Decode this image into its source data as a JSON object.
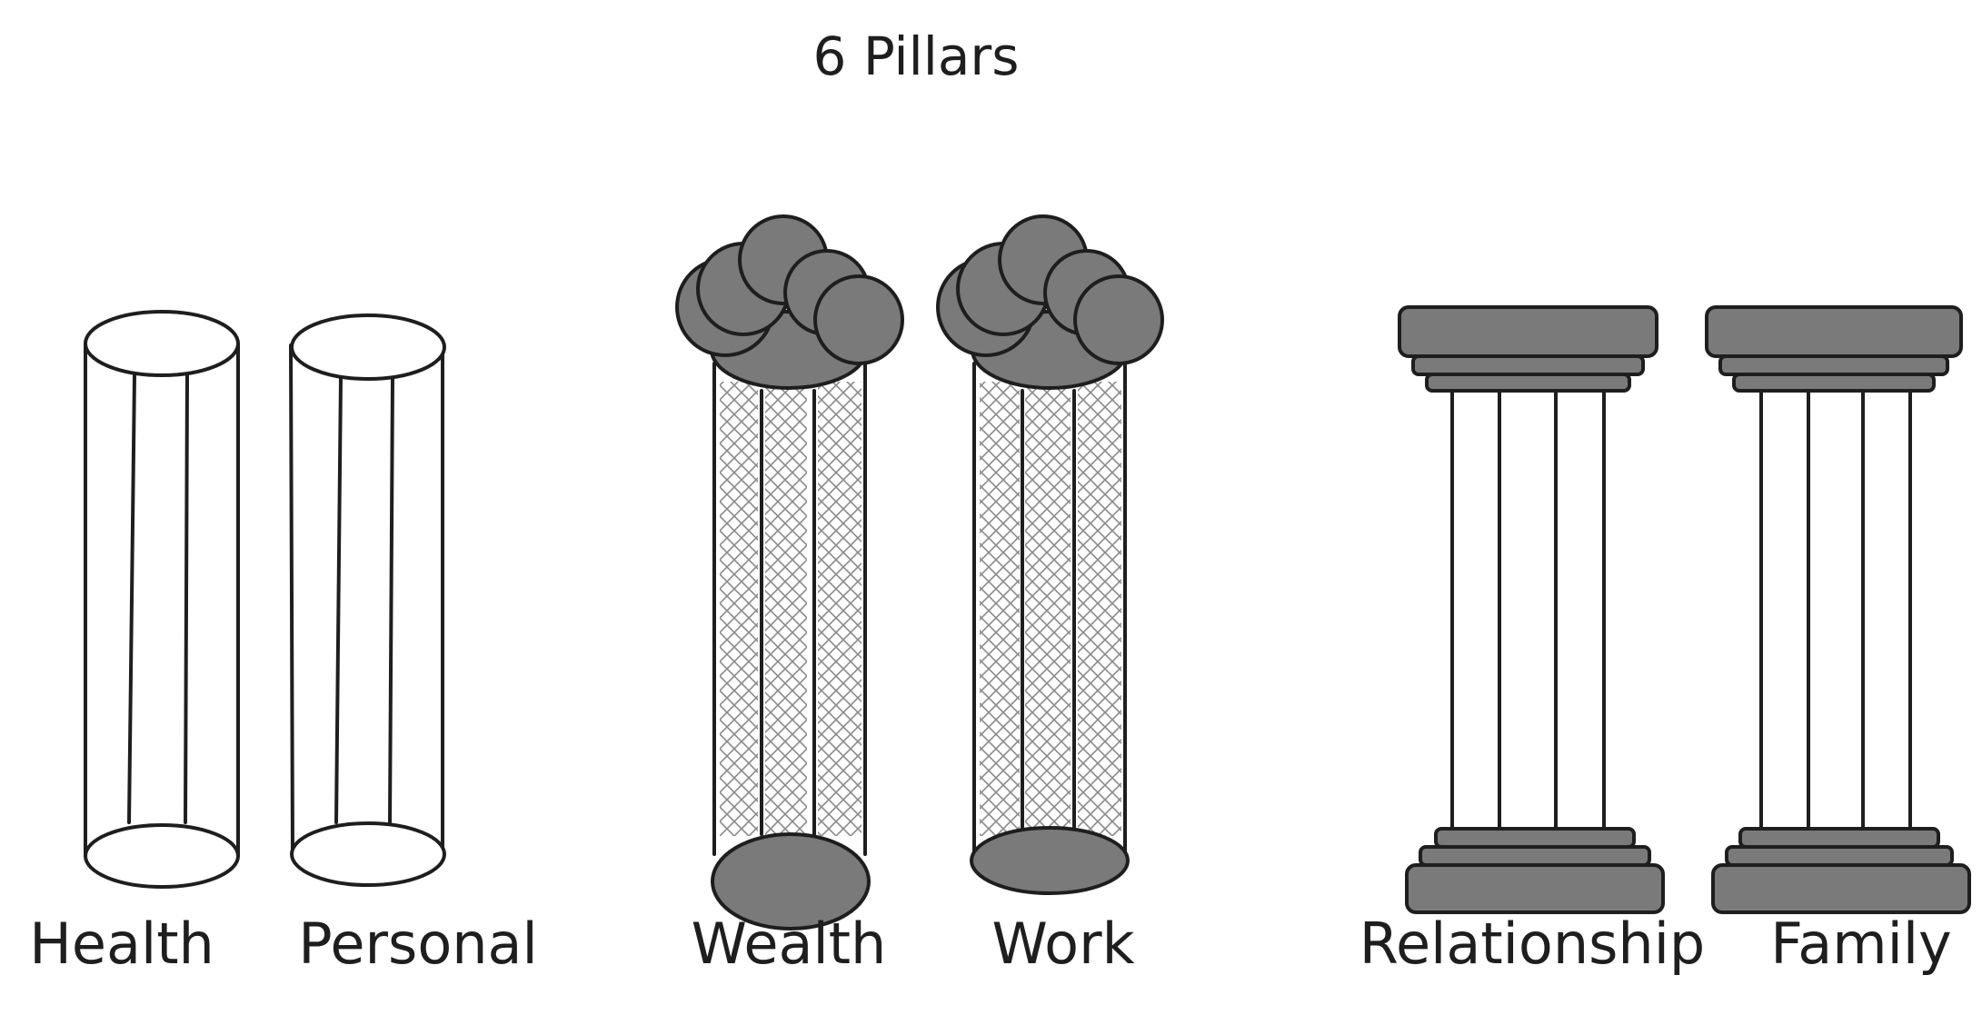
{
  "title": "6 Pillars",
  "colors": {
    "ink": "#1e1e1e",
    "fill": "#7a7a7a",
    "hatch": "#8a8a8a",
    "background": "#ffffff"
  },
  "groups": [
    {
      "style": "plain-cylinder",
      "pillars": [
        {
          "label": "Health"
        },
        {
          "label": "Personal"
        }
      ]
    },
    {
      "style": "stone-crown-hatched",
      "pillars": [
        {
          "label": "Wealth"
        },
        {
          "label": "Work"
        }
      ]
    },
    {
      "style": "classical-column",
      "pillars": [
        {
          "label": "Relationship"
        },
        {
          "label": "Family"
        }
      ]
    }
  ]
}
